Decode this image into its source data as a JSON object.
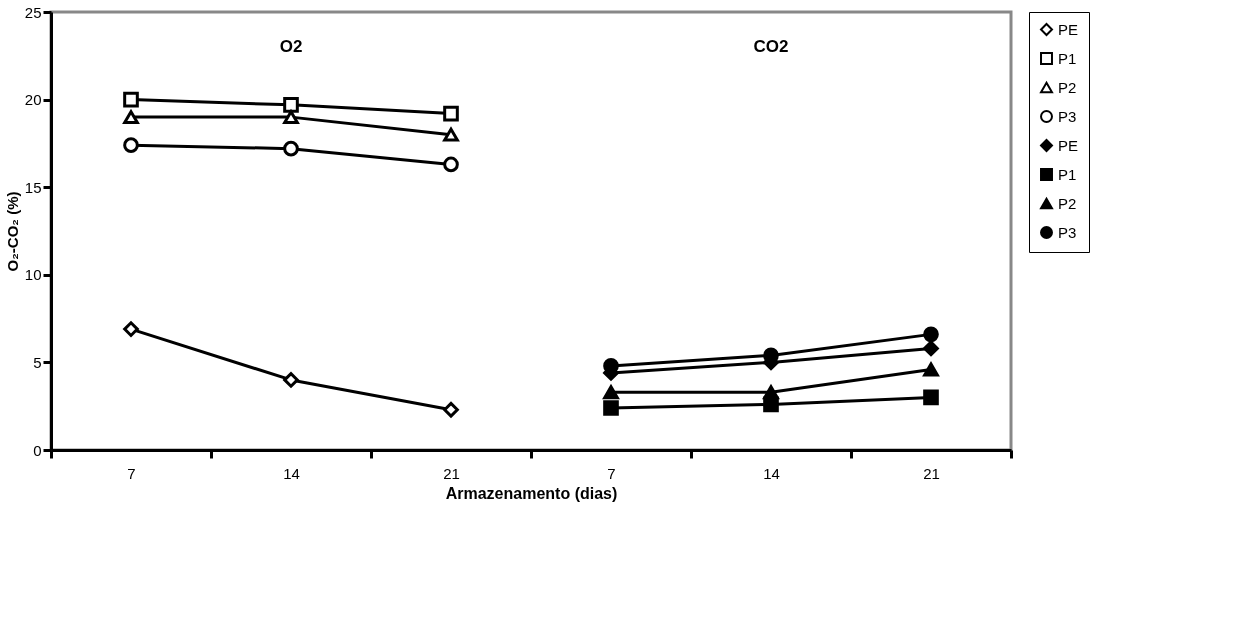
{
  "chart_data": {
    "type": "line",
    "xlabel": "Armazenamento (dias)",
    "ylabel": "O₂-CO₂ (%)",
    "categories": [
      "7",
      "14",
      "21",
      "7",
      "14",
      "21"
    ],
    "annotations": [
      "O2",
      "CO2"
    ],
    "ylim": [
      0,
      25
    ],
    "yticks": [
      0,
      5,
      10,
      15,
      20,
      25
    ],
    "grid": false,
    "legend": "right",
    "series": [
      {
        "name": "PE",
        "color": "#000000",
        "marker": "diamond-open",
        "values": [
          6.9,
          4.0,
          2.3,
          null,
          null,
          null
        ]
      },
      {
        "name": "P1",
        "color": "#000000",
        "marker": "square-open",
        "values": [
          20.0,
          19.7,
          19.2,
          null,
          null,
          null
        ]
      },
      {
        "name": "P2",
        "color": "#000000",
        "marker": "triangle-open",
        "values": [
          19.0,
          19.0,
          18.0,
          null,
          null,
          null
        ]
      },
      {
        "name": "P3",
        "color": "#000000",
        "marker": "circle-open",
        "values": [
          17.4,
          17.2,
          16.3,
          null,
          null,
          null
        ]
      },
      {
        "name": "PE",
        "color": "#000000",
        "marker": "diamond",
        "values": [
          null,
          null,
          null,
          4.4,
          5.0,
          5.8
        ]
      },
      {
        "name": "P1",
        "color": "#000000",
        "marker": "square",
        "values": [
          null,
          null,
          null,
          2.4,
          2.6,
          3.0
        ]
      },
      {
        "name": "P2",
        "color": "#000000",
        "marker": "triangle",
        "values": [
          null,
          null,
          null,
          3.3,
          3.3,
          4.6
        ]
      },
      {
        "name": "P3",
        "color": "#000000",
        "marker": "circle",
        "values": [
          null,
          null,
          null,
          4.8,
          5.4,
          6.6
        ]
      }
    ]
  }
}
